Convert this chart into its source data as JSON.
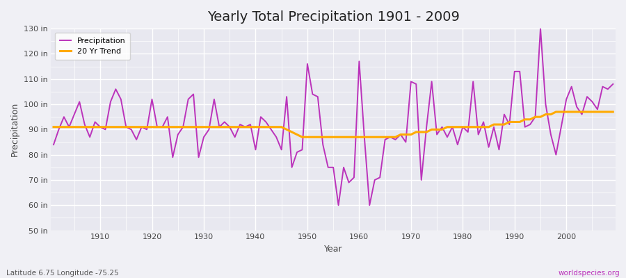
{
  "title": "Yearly Total Precipitation 1901 - 2009",
  "xlabel": "Year",
  "ylabel": "Precipitation",
  "bg_color": "#f0f0f5",
  "plot_bg_color": "#e8e8f0",
  "precip_color": "#bb33bb",
  "trend_color": "#ffaa00",
  "precip_label": "Precipitation",
  "trend_label": "20 Yr Trend",
  "ylim": [
    50,
    130
  ],
  "yticks": [
    50,
    60,
    70,
    80,
    90,
    100,
    110,
    120,
    130
  ],
  "ytick_labels": [
    "50 in",
    "60 in",
    "70 in",
    "80 in",
    "90 in",
    "100 in",
    "110 in",
    "120 in",
    "130 in"
  ],
  "xtick_positions": [
    1910,
    1920,
    1930,
    1940,
    1950,
    1960,
    1970,
    1980,
    1990,
    2000
  ],
  "footnote_left": "Latitude 6.75 Longitude -75.25",
  "footnote_right": "worldspecies.org",
  "years": [
    1901,
    1902,
    1903,
    1904,
    1905,
    1906,
    1907,
    1908,
    1909,
    1910,
    1911,
    1912,
    1913,
    1914,
    1915,
    1916,
    1917,
    1918,
    1919,
    1920,
    1921,
    1922,
    1923,
    1924,
    1925,
    1926,
    1927,
    1928,
    1929,
    1930,
    1931,
    1932,
    1933,
    1934,
    1935,
    1936,
    1937,
    1938,
    1939,
    1940,
    1941,
    1942,
    1943,
    1944,
    1945,
    1946,
    1947,
    1948,
    1949,
    1950,
    1951,
    1952,
    1953,
    1954,
    1955,
    1956,
    1957,
    1958,
    1959,
    1960,
    1961,
    1962,
    1963,
    1964,
    1965,
    1966,
    1967,
    1968,
    1969,
    1970,
    1971,
    1972,
    1973,
    1974,
    1975,
    1976,
    1977,
    1978,
    1979,
    1980,
    1981,
    1982,
    1983,
    1984,
    1985,
    1986,
    1987,
    1988,
    1989,
    1990,
    1991,
    1992,
    1993,
    1994,
    1995,
    1996,
    1997,
    1998,
    1999,
    2000,
    2001,
    2002,
    2003,
    2004,
    2005,
    2006,
    2007,
    2008,
    2009
  ],
  "precip": [
    84,
    90,
    95,
    91,
    96,
    101,
    92,
    87,
    93,
    91,
    90,
    101,
    106,
    102,
    91,
    90,
    86,
    91,
    90,
    102,
    91,
    91,
    95,
    79,
    88,
    91,
    102,
    104,
    79,
    87,
    90,
    102,
    91,
    93,
    91,
    87,
    92,
    91,
    92,
    82,
    95,
    93,
    90,
    87,
    82,
    103,
    75,
    81,
    82,
    116,
    104,
    103,
    84,
    75,
    75,
    60,
    75,
    69,
    71,
    117,
    87,
    60,
    70,
    71,
    86,
    87,
    86,
    88,
    85,
    109,
    108,
    70,
    91,
    109,
    88,
    91,
    87,
    91,
    84,
    91,
    89,
    109,
    88,
    93,
    83,
    91,
    82,
    96,
    92,
    113,
    113,
    91,
    92,
    95,
    130,
    100,
    88,
    80,
    91,
    102,
    107,
    99,
    96,
    103,
    101,
    98,
    107,
    106,
    108
  ],
  "trend": [
    91,
    91,
    91,
    91,
    91,
    91,
    91,
    91,
    91,
    91,
    91,
    91,
    91,
    91,
    91,
    91,
    91,
    91,
    91,
    91,
    91,
    91,
    91,
    91,
    91,
    91,
    91,
    91,
    91,
    91,
    91,
    91,
    91,
    91,
    91,
    91,
    91,
    91,
    91,
    91,
    91,
    91,
    91,
    91,
    91,
    90,
    89,
    88,
    87,
    87,
    87,
    87,
    87,
    87,
    87,
    87,
    87,
    87,
    87,
    87,
    87,
    87,
    87,
    87,
    87,
    87,
    87,
    88,
    88,
    88,
    89,
    89,
    89,
    90,
    90,
    90,
    91,
    91,
    91,
    91,
    91,
    91,
    91,
    91,
    91,
    92,
    92,
    92,
    93,
    93,
    93,
    94,
    94,
    95,
    95,
    96,
    96,
    97,
    97,
    97,
    97,
    97,
    97,
    97,
    97,
    97,
    97,
    97,
    97
  ]
}
